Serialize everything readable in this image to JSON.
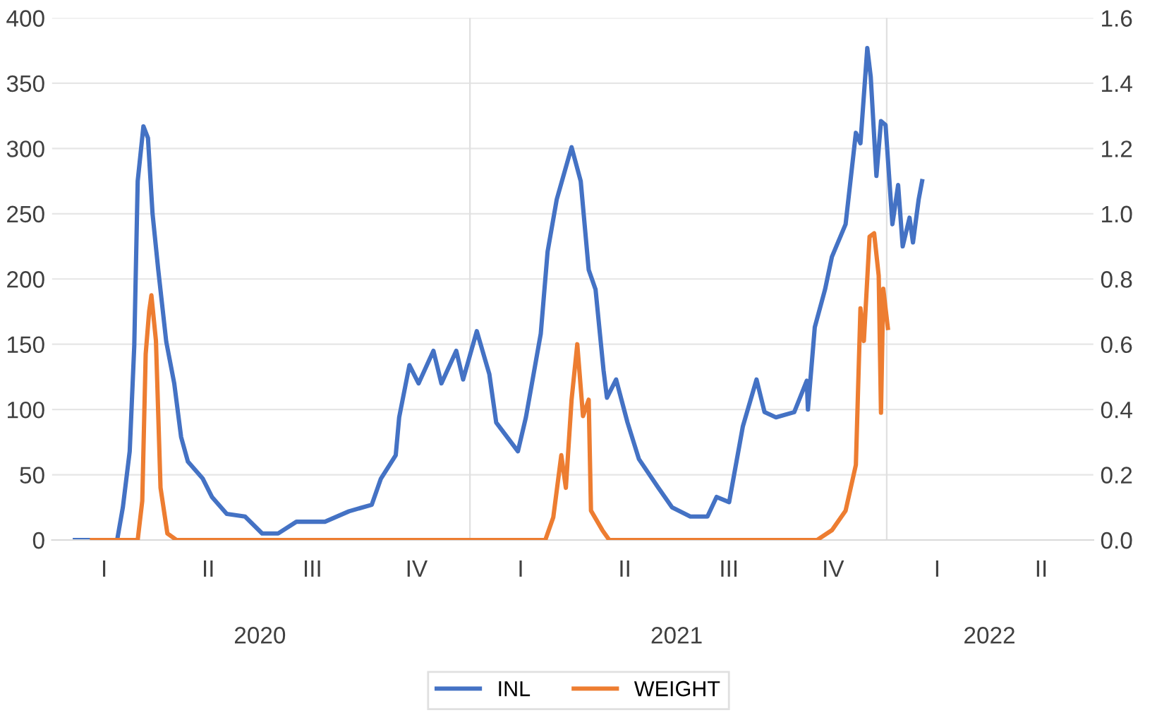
{
  "chart_data": {
    "type": "line",
    "series": [
      {
        "name": "INL",
        "color": "#4472c4",
        "x": [
          "2020-01-21",
          "2020-02-27",
          "2020-03-03",
          "2020-03-09",
          "2020-03-13",
          "2020-03-16",
          "2020-03-21",
          "2020-03-25",
          "2020-03-29",
          "2020-04-03",
          "2020-04-10",
          "2020-04-17",
          "2020-04-23",
          "2020-04-29",
          "2020-05-12",
          "2020-05-20",
          "2020-06-02",
          "2020-06-18",
          "2020-07-03",
          "2020-07-17",
          "2020-08-02",
          "2020-08-27",
          "2020-09-17",
          "2020-10-07",
          "2020-10-15",
          "2020-10-28",
          "2020-10-31",
          "2020-11-09",
          "2020-11-17",
          "2020-11-30",
          "2020-12-07",
          "2020-12-20",
          "2020-12-26",
          "2021-01-07",
          "2021-01-18",
          "2021-01-24",
          "2021-02-12",
          "2021-02-19",
          "2021-03-04",
          "2021-03-10",
          "2021-03-18",
          "2021-03-31",
          "2021-04-08",
          "2021-04-15",
          "2021-04-21",
          "2021-04-28",
          "2021-05-01",
          "2021-05-09",
          "2021-05-19",
          "2021-05-29",
          "2021-06-15",
          "2021-06-27",
          "2021-07-13",
          "2021-07-28",
          "2021-08-05",
          "2021-08-16",
          "2021-08-28",
          "2021-09-09",
          "2021-09-16",
          "2021-09-26",
          "2021-10-12",
          "2021-10-23",
          "2021-10-24",
          "2021-10-30",
          "2021-11-08",
          "2021-11-14",
          "2021-11-26",
          "2021-12-05",
          "2021-12-09",
          "2021-12-15",
          "2021-12-18",
          "2021-12-23",
          "2021-12-27",
          "2021-12-31",
          "2022-01-06",
          "2022-01-11",
          "2022-01-15",
          "2022-01-21",
          "2022-01-24",
          "2022-01-29",
          "2022-02-01"
        ],
        "values": [
          0,
          0,
          25,
          68,
          149,
          275,
          317,
          308,
          250,
          207,
          152,
          120,
          79,
          60,
          47,
          33,
          20,
          18,
          5,
          5,
          14,
          14,
          22,
          27,
          47,
          65,
          94,
          134,
          120,
          145,
          120,
          145,
          123,
          160,
          127,
          90,
          68,
          94,
          158,
          221,
          261,
          301,
          275,
          207,
          192,
          130,
          109,
          123,
          90,
          62,
          40,
          25,
          18,
          18,
          33,
          29,
          87,
          123,
          98,
          94,
          98,
          122,
          100,
          163,
          192,
          217,
          242,
          312,
          304,
          377,
          355,
          279,
          321,
          318,
          242,
          272,
          225,
          247,
          228,
          261,
          275
        ]
      },
      {
        "name": "WEIGHT",
        "color": "#ed7d31",
        "axis": "y2",
        "x": [
          "2020-02-05",
          "2020-03-16",
          "2020-03-20",
          "2020-03-23",
          "2020-03-26",
          "2020-03-28",
          "2020-04-01",
          "2020-04-05",
          "2020-04-11",
          "2020-04-19",
          "2021-03-08",
          "2021-03-15",
          "2021-03-22",
          "2021-03-26",
          "2021-03-31",
          "2021-04-05",
          "2021-04-10",
          "2021-04-15",
          "2021-04-17",
          "2021-04-27",
          "2021-05-03",
          "2021-11-01",
          "2021-11-14",
          "2021-11-26",
          "2021-12-05",
          "2021-12-09",
          "2021-12-12",
          "2021-12-17",
          "2021-12-21",
          "2021-12-25",
          "2021-12-27",
          "2021-12-29",
          "2022-01-02"
        ],
        "values": [
          0,
          0,
          0.12,
          0.57,
          0.7,
          0.75,
          0.61,
          0.16,
          0.02,
          0,
          0,
          0.07,
          0.26,
          0.16,
          0.43,
          0.6,
          0.38,
          0.43,
          0.09,
          0.03,
          0,
          0,
          0.03,
          0.09,
          0.23,
          0.71,
          0.61,
          0.93,
          0.94,
          0.81,
          0.39,
          0.77,
          0.65
        ]
      }
    ],
    "xlim": [
      "2020-01-01",
      "2022-07-01"
    ],
    "xticks": [
      {
        "value": "2020-07-01",
        "label": "2020"
      },
      {
        "value": "2021-07-01",
        "label": "2021"
      },
      {
        "value": "2022-04-01",
        "label": "2022"
      }
    ],
    "annotations": [
      "I",
      "II",
      "III",
      "IV",
      "I",
      "II",
      "III",
      "IV",
      "I",
      "II"
    ],
    "ylim": [
      0,
      400
    ],
    "yticks": [
      0,
      50,
      100,
      150,
      200,
      250,
      300,
      350,
      400
    ],
    "y2lim": [
      0,
      1.6
    ],
    "y2ticks": [
      {
        "value": 0,
        "label": "0.0"
      },
      {
        "value": 0.2,
        "label": "0.2"
      },
      {
        "value": 0.4,
        "label": "0.4"
      },
      {
        "value": 0.6,
        "label": "0.6"
      },
      {
        "value": 0.8,
        "label": "0.8"
      },
      {
        "value": 1.0,
        "label": "1.0"
      },
      {
        "value": 1.2,
        "label": "1.2"
      },
      {
        "value": 1.4,
        "label": "1.4"
      },
      {
        "value": 1.6,
        "label": "1.6"
      }
    ],
    "ref_lines": [
      {
        "axis": "x",
        "value": "2021-01-01",
        "label": null,
        "color": "#e0e0e0"
      },
      {
        "axis": "x",
        "value": "2022-01-01",
        "label": null,
        "color": "#e0e0e0"
      }
    ],
    "grid": "y",
    "legend": "bottom",
    "marker": "none",
    "line_style": "solid"
  }
}
